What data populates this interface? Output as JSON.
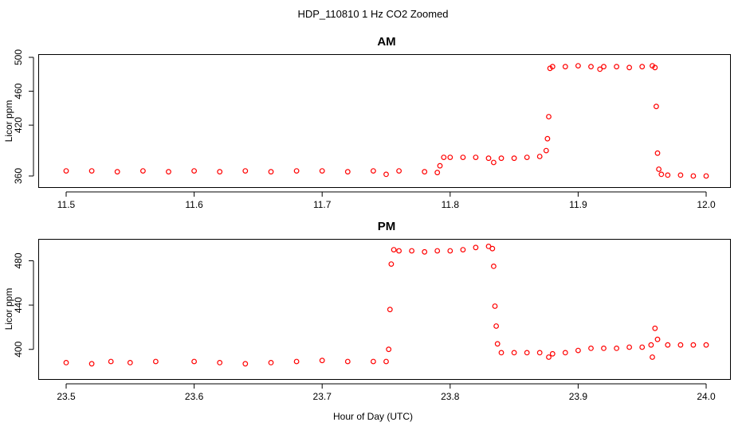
{
  "figure": {
    "title": "HDP_110810  1 Hz CO2 Zoomed",
    "xlabel": "Hour of Day (UTC)"
  },
  "colors": {
    "points": "#ff0000",
    "axes": "#000000",
    "background": "#ffffff"
  },
  "chart_data": [
    {
      "type": "scatter",
      "title": "AM",
      "ylabel": "Licor ppm",
      "xlim": [
        11.5,
        12.0
      ],
      "ylim": [
        360,
        500
      ],
      "x_ticks": [
        "11.5",
        "11.6",
        "11.7",
        "11.8",
        "11.9",
        "12.0"
      ],
      "y_ticks": [
        "360",
        "420",
        "460",
        "500"
      ],
      "y_ticks_values": [
        360,
        420,
        460,
        500
      ],
      "x_ticks_values": [
        11.5,
        11.6,
        11.7,
        11.8,
        11.9,
        12.0
      ],
      "marker": "open-circle",
      "series": [
        {
          "x": [
            11.5,
            11.52,
            11.54,
            11.56,
            11.58,
            11.6,
            11.62,
            11.64,
            11.66,
            11.68,
            11.7,
            11.72,
            11.74,
            11.75,
            11.76,
            11.78,
            11.79,
            11.792,
            11.795,
            11.8,
            11.81,
            11.82,
            11.83,
            11.834,
            11.84,
            11.85,
            11.86,
            11.87,
            11.875,
            11.876,
            11.877,
            11.878,
            11.88,
            11.89,
            11.9,
            11.91,
            11.917,
            11.92,
            11.93,
            11.94,
            11.95,
            11.958,
            11.96,
            11.961,
            11.962,
            11.963,
            11.965,
            11.97,
            11.98,
            11.99,
            12.0
          ],
          "y": [
            366,
            366,
            365,
            366,
            365,
            366,
            365,
            366,
            365,
            366,
            366,
            365,
            366,
            362,
            366,
            365,
            364,
            372,
            382,
            382,
            382,
            382,
            381,
            376,
            381,
            381,
            382,
            383,
            390,
            404,
            430,
            487,
            489,
            489,
            490,
            489,
            486,
            489,
            489,
            488,
            489,
            490,
            488,
            442,
            387,
            368,
            362,
            361,
            361,
            360,
            360
          ]
        }
      ]
    },
    {
      "type": "scatter",
      "title": "PM",
      "ylabel": "Licor ppm",
      "xlim": [
        23.5,
        24.0
      ],
      "ylim": [
        384,
        494
      ],
      "x_ticks": [
        "23.5",
        "23.6",
        "23.7",
        "23.8",
        "23.9",
        "24.0"
      ],
      "x_ticks_values": [
        23.5,
        23.6,
        23.7,
        23.8,
        23.9,
        24.0
      ],
      "y_ticks": [
        "400",
        "440",
        "480"
      ],
      "y_ticks_values": [
        400,
        440,
        480
      ],
      "marker": "open-circle",
      "series": [
        {
          "x": [
            23.5,
            23.52,
            23.535,
            23.55,
            23.57,
            23.6,
            23.62,
            23.64,
            23.66,
            23.68,
            23.7,
            23.72,
            23.74,
            23.75,
            23.752,
            23.753,
            23.754,
            23.756,
            23.76,
            23.77,
            23.78,
            23.79,
            23.8,
            23.81,
            23.82,
            23.83,
            23.833,
            23.834,
            23.835,
            23.836,
            23.837,
            23.84,
            23.85,
            23.86,
            23.87,
            23.877,
            23.88,
            23.89,
            23.9,
            23.91,
            23.92,
            23.93,
            23.94,
            23.95,
            23.957,
            23.958,
            23.96,
            23.962,
            23.97,
            23.98,
            23.99,
            24.0
          ],
          "y": [
            388,
            387,
            389,
            388,
            389,
            389,
            388,
            387,
            388,
            389,
            390,
            389,
            389,
            389,
            400,
            436,
            477,
            490,
            489,
            489,
            488,
            489,
            489,
            490,
            492,
            493,
            491,
            475,
            439,
            421,
            405,
            397,
            397,
            397,
            397,
            393,
            396,
            397,
            399,
            401,
            401,
            401,
            402,
            402,
            404,
            393,
            419,
            409,
            404,
            404,
            404,
            404
          ]
        }
      ]
    }
  ]
}
